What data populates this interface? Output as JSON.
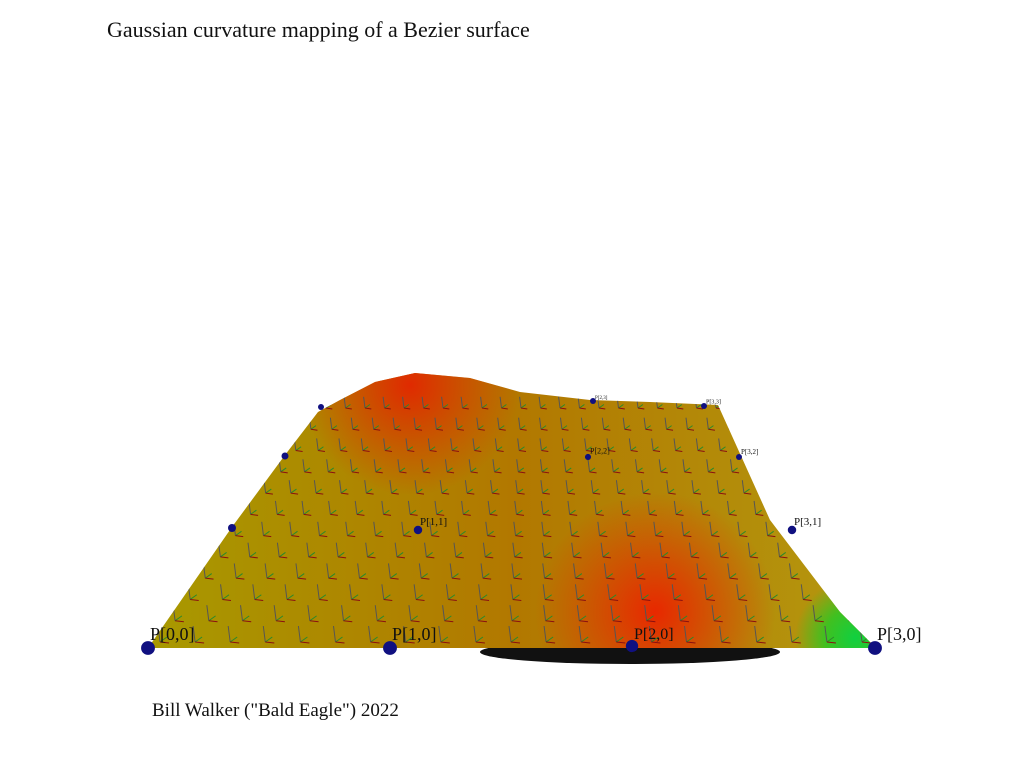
{
  "header": {
    "title": "Gaussian curvature mapping of a Bezier surface"
  },
  "footer": {
    "credit": "Bill Walker (\"Bald Eagle\") 2022"
  },
  "points": [
    {
      "label": "P[0,0]"
    },
    {
      "label": "P[1,0]"
    },
    {
      "label": "P[2,0]"
    },
    {
      "label": "P[3,0]"
    },
    {
      "label": "P[1,1]"
    },
    {
      "label": "P[3,1]"
    },
    {
      "label": "P[2,2]"
    },
    {
      "label": "P[3,2]"
    },
    {
      "label": "P[2,3]"
    },
    {
      "label": "P[3,3]"
    }
  ]
}
